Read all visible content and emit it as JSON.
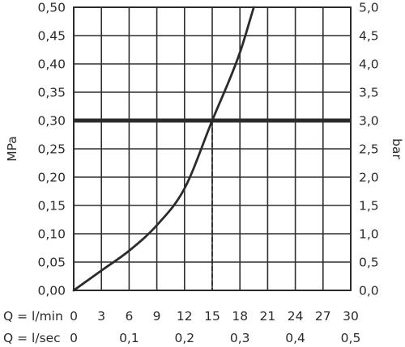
{
  "chart_data": {
    "type": "line",
    "left_axis": {
      "label": "MPa",
      "ylim": [
        0,
        0.5
      ],
      "ticks": [
        "0,00",
        "0,05",
        "0,10",
        "0,15",
        "0,20",
        "0,25",
        "0,30",
        "0,35",
        "0,40",
        "0,45",
        "0,50"
      ]
    },
    "right_axis": {
      "label": "bar",
      "ylim": [
        0,
        5
      ],
      "ticks": [
        "0,0",
        "0,5",
        "1,0",
        "1,5",
        "2,0",
        "2,5",
        "3,0",
        "3,5",
        "4,0",
        "4,5",
        "5,0"
      ]
    },
    "x_axis_min": {
      "label": "Q = l/min",
      "xlim": [
        0,
        30
      ],
      "ticks": [
        "0",
        "3",
        "6",
        "9",
        "12",
        "15",
        "18",
        "21",
        "24",
        "27",
        "30"
      ]
    },
    "x_axis_sec": {
      "label": "Q = l/sec",
      "ticks": [
        {
          "at": 0,
          "text": "0"
        },
        {
          "at": 6,
          "text": "0,1"
        },
        {
          "at": 12,
          "text": "0,2"
        },
        {
          "at": 18,
          "text": "0,3"
        },
        {
          "at": 24,
          "text": "0,4"
        },
        {
          "at": 30,
          "text": "0,5"
        }
      ]
    },
    "grid": true,
    "series": [
      {
        "x": [
          0,
          3,
          6,
          9,
          12,
          15,
          18,
          19.5
        ],
        "y": [
          0,
          0.035,
          0.07,
          0.115,
          0.18,
          0.3,
          0.42,
          0.5
        ]
      }
    ],
    "reference_line_y": 0.3,
    "marker_x": 15
  }
}
